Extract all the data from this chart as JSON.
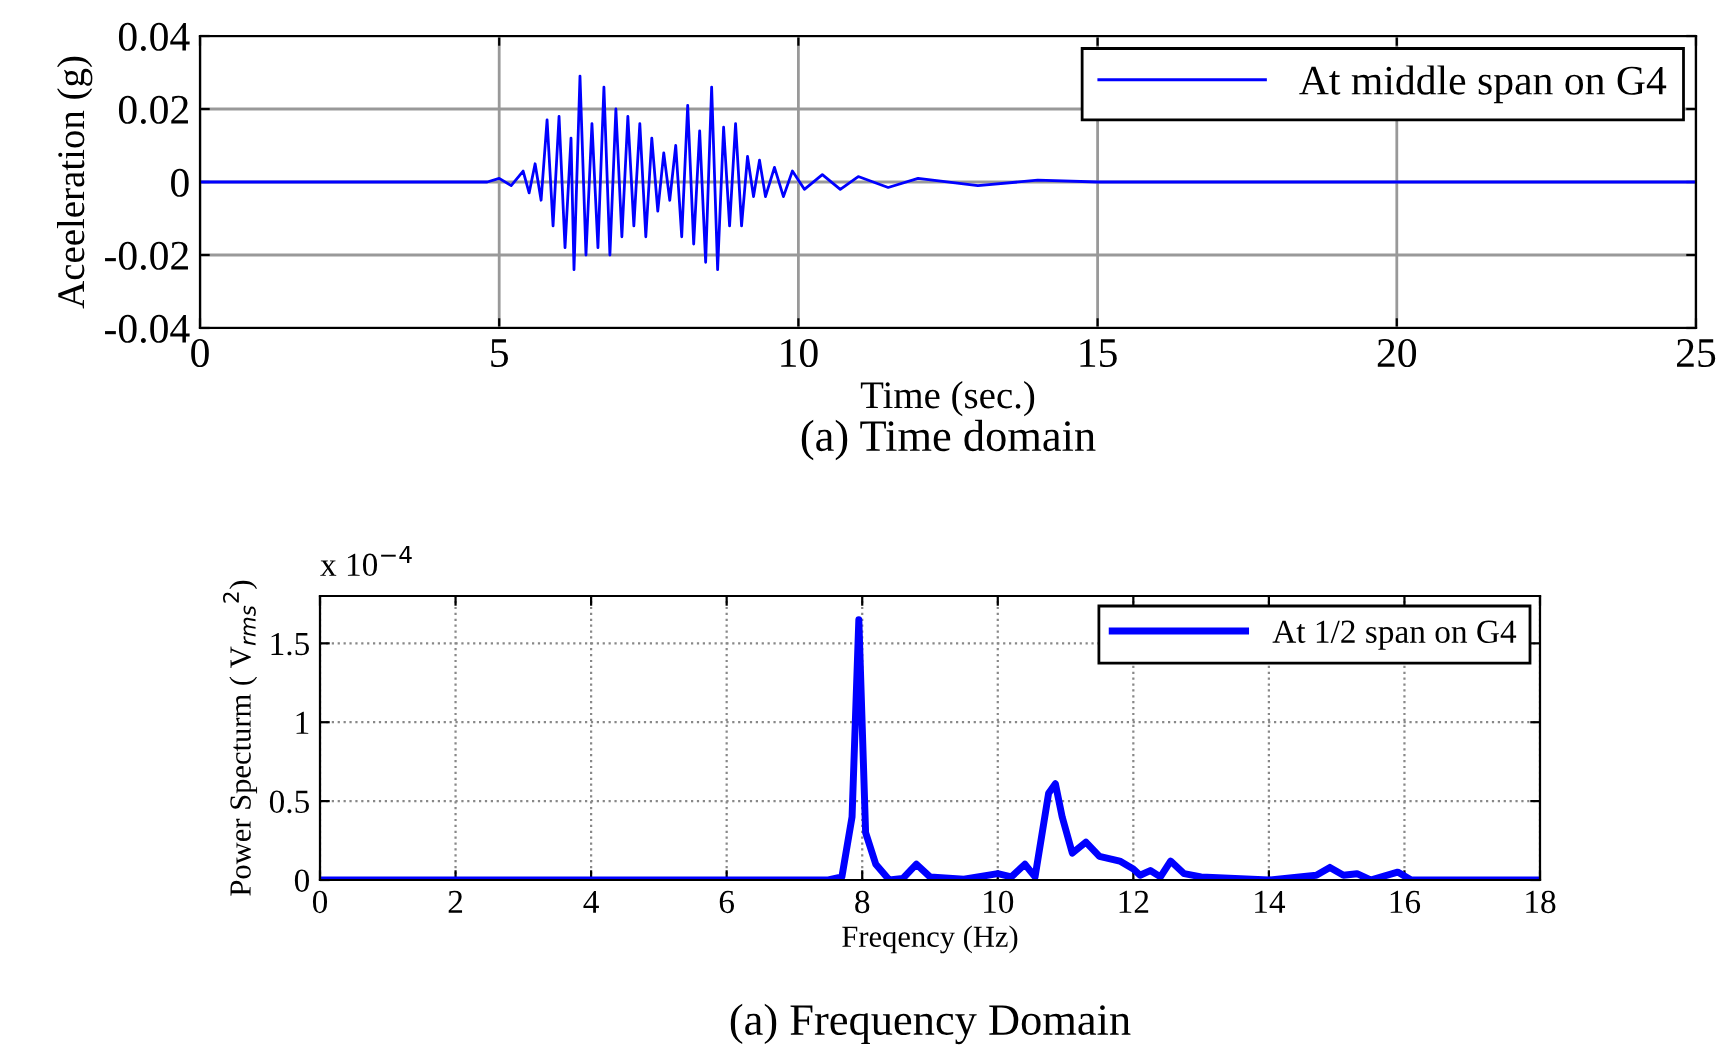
{
  "chart_data": [
    {
      "type": "line",
      "xlabel": "Time (sec.)",
      "ylabel": "Aceeleration (g)",
      "annotations": [
        "(a) Time domain"
      ],
      "xlim": [
        0,
        25
      ],
      "ylim": [
        -0.04,
        0.04
      ],
      "xticks": [
        0,
        5,
        10,
        15,
        20,
        25
      ],
      "yticks": [
        {
          "value": -0.04,
          "label": "-0.04"
        },
        {
          "value": -0.02,
          "label": "-0.02"
        },
        0,
        0.02,
        0.04
      ],
      "grid": true,
      "legend": "top right",
      "series": [
        {
          "name": "At middle span on G4",
          "color": "#0000ff",
          "x": [
            0,
            1,
            2,
            3,
            4,
            4.8,
            5.0,
            5.2,
            5.4,
            5.5,
            5.6,
            5.7,
            5.8,
            5.9,
            6.0,
            6.1,
            6.2,
            6.25,
            6.35,
            6.45,
            6.55,
            6.65,
            6.75,
            6.85,
            6.95,
            7.05,
            7.15,
            7.25,
            7.35,
            7.45,
            7.55,
            7.65,
            7.75,
            7.85,
            7.95,
            8.05,
            8.15,
            8.25,
            8.35,
            8.45,
            8.55,
            8.65,
            8.75,
            8.85,
            8.95,
            9.05,
            9.15,
            9.25,
            9.35,
            9.45,
            9.6,
            9.75,
            9.9,
            10.1,
            10.4,
            10.7,
            11,
            11.5,
            12,
            13,
            14,
            15,
            20,
            25
          ],
          "values": [
            0,
            0,
            0,
            0,
            0,
            0,
            0.001,
            -0.001,
            0.003,
            -0.003,
            0.005,
            -0.005,
            0.017,
            -0.012,
            0.018,
            -0.018,
            0.012,
            -0.024,
            0.029,
            -0.02,
            0.016,
            -0.018,
            0.026,
            -0.02,
            0.02,
            -0.015,
            0.018,
            -0.012,
            0.016,
            -0.015,
            0.012,
            -0.008,
            0.008,
            -0.005,
            0.01,
            -0.015,
            0.021,
            -0.017,
            0.014,
            -0.022,
            0.026,
            -0.024,
            0.015,
            -0.012,
            0.016,
            -0.012,
            0.007,
            -0.004,
            0.006,
            -0.004,
            0.004,
            -0.004,
            0.003,
            -0.002,
            0.002,
            -0.002,
            0.0015,
            -0.0015,
            0.001,
            -0.001,
            0.0005,
            0,
            0,
            0
          ]
        }
      ]
    },
    {
      "type": "line",
      "xlabel": "Freqency (Hz)",
      "ylabel": "Power Specturm ( V$_{rms}$$^{2}$)",
      "annotations": [
        "(a) Frequency Domain",
        "x 10$^{−4}$"
      ],
      "xlim": [
        0,
        18
      ],
      "ylim": [
        0,
        1.8
      ],
      "xticks": [
        0,
        2,
        4,
        6,
        8,
        10,
        12,
        14,
        16,
        18
      ],
      "yticks": [
        0,
        0.5,
        1,
        1.5
      ],
      "grid": true,
      "legend": "top right",
      "series": [
        {
          "name": "At 1/2 span on G4",
          "color": "#0000ff",
          "x": [
            0,
            7.5,
            7.7,
            7.85,
            7.95,
            8.05,
            8.2,
            8.4,
            8.6,
            8.8,
            9.0,
            9.5,
            10.0,
            10.2,
            10.4,
            10.55,
            10.75,
            10.85,
            10.95,
            11.1,
            11.3,
            11.5,
            11.8,
            12.0,
            12.1,
            12.25,
            12.4,
            12.55,
            12.75,
            13.0,
            13.5,
            14.0,
            14.7,
            14.9,
            15.1,
            15.3,
            15.5,
            15.9,
            16.1,
            18
          ],
          "values": [
            0,
            0,
            0.02,
            0.4,
            1.65,
            0.3,
            0.1,
            0,
            0.01,
            0.1,
            0.02,
            0.005,
            0.04,
            0.02,
            0.1,
            0.02,
            0.55,
            0.61,
            0.4,
            0.17,
            0.24,
            0.15,
            0.12,
            0.07,
            0.03,
            0.06,
            0.02,
            0.12,
            0.04,
            0.02,
            0.01,
            0,
            0.03,
            0.08,
            0.03,
            0.04,
            0,
            0.05,
            0,
            0
          ]
        }
      ]
    }
  ]
}
